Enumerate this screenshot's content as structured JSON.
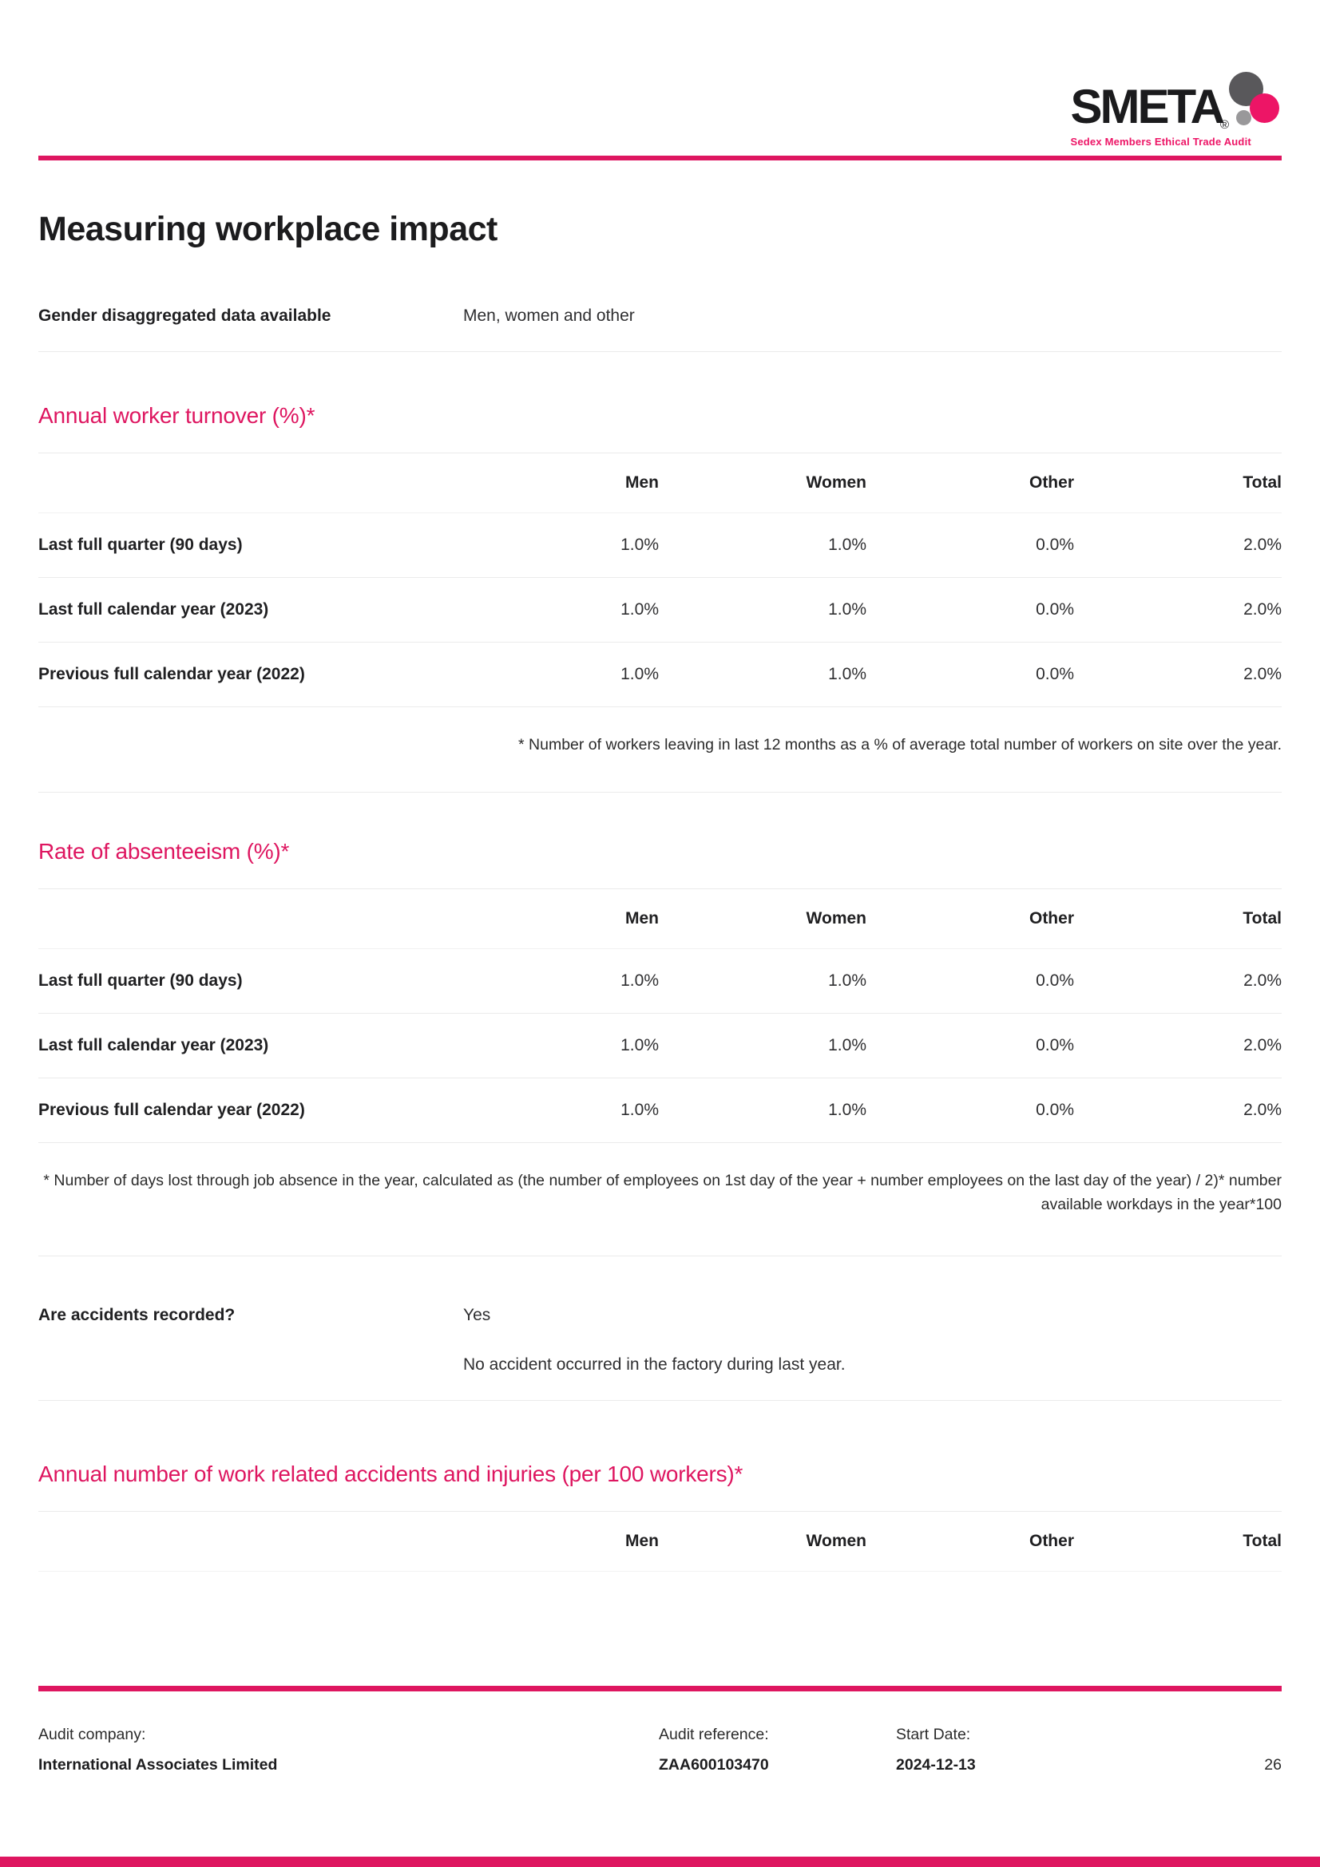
{
  "logo": {
    "text": "SMETA",
    "registered_mark": "®",
    "subtitle": "Sedex Members Ethical Trade Audit"
  },
  "title": "Measuring workplace impact",
  "gender": {
    "label": "Gender disaggregated data available",
    "value": "Men, women and other"
  },
  "table_columns": [
    "Men",
    "Women",
    "Other",
    "Total"
  ],
  "turnover": {
    "title": "Annual worker turnover (%)*",
    "rows": [
      {
        "label": "Last full quarter (90 days)",
        "values": [
          "1.0%",
          "1.0%",
          "0.0%",
          "2.0%"
        ]
      },
      {
        "label": "Last full calendar year (2023)",
        "values": [
          "1.0%",
          "1.0%",
          "0.0%",
          "2.0%"
        ]
      },
      {
        "label": "Previous full calendar year (2022)",
        "values": [
          "1.0%",
          "1.0%",
          "0.0%",
          "2.0%"
        ]
      }
    ],
    "footnote": "* Number of workers leaving in last 12 months as a % of average total number of workers on site over the year."
  },
  "absenteeism": {
    "title": "Rate of absenteeism (%)*",
    "rows": [
      {
        "label": "Last full quarter (90 days)",
        "values": [
          "1.0%",
          "1.0%",
          "0.0%",
          "2.0%"
        ]
      },
      {
        "label": "Last full calendar year (2023)",
        "values": [
          "1.0%",
          "1.0%",
          "0.0%",
          "2.0%"
        ]
      },
      {
        "label": "Previous full calendar year (2022)",
        "values": [
          "1.0%",
          "1.0%",
          "0.0%",
          "2.0%"
        ]
      }
    ],
    "footnote": "* Number of days lost through job absence in the year, calculated as (the number of employees on 1st day of the year + number employees on the last day of the year) / 2)* number available workdays in the year*100"
  },
  "accidents": {
    "question": "Are accidents recorded?",
    "answer": "Yes",
    "note": "No accident occurred in the factory during last year.",
    "table_title": "Annual number of work related accidents and injuries (per 100 workers)*"
  },
  "footer": {
    "company_label": "Audit company:",
    "company": "International Associates Limited",
    "reference_label": "Audit reference:",
    "reference": "ZAA600103470",
    "start_date_label": "Start Date:",
    "start_date": "2024-12-13",
    "page_number": "26"
  },
  "colors": {
    "brand_pink": "#de1660",
    "logo_pink": "#ed1566",
    "dot_dark": "#59585b",
    "dot_gray": "#99989a"
  }
}
